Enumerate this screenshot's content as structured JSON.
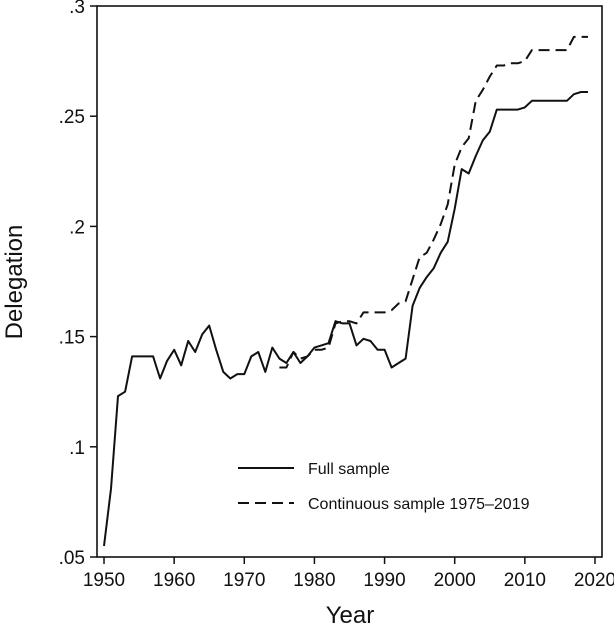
{
  "chart_data": {
    "type": "line",
    "title": "",
    "xlabel": "Year",
    "ylabel": "Delegation",
    "xlim": [
      1949,
      2021
    ],
    "ylim": [
      0.05,
      0.3
    ],
    "x_ticks": [
      1950,
      1960,
      1970,
      1980,
      1990,
      2000,
      2010,
      2020
    ],
    "x_tick_labels": [
      "1950",
      "1960",
      "1970",
      "1980",
      "1990",
      "2000",
      "2010",
      "2020"
    ],
    "y_ticks": [
      0.05,
      0.1,
      0.15,
      0.2,
      0.25,
      0.3
    ],
    "y_tick_labels": [
      ".05",
      ".1",
      ".15",
      ".2",
      ".25",
      ".3"
    ],
    "grid": false,
    "legend_position": "bottom-right",
    "series": [
      {
        "name": "Full sample",
        "style": "solid",
        "color": "#111111",
        "x": [
          1950,
          1951,
          1952,
          1953,
          1954,
          1955,
          1956,
          1957,
          1958,
          1959,
          1960,
          1961,
          1962,
          1963,
          1964,
          1965,
          1966,
          1967,
          1968,
          1969,
          1970,
          1971,
          1972,
          1973,
          1974,
          1975,
          1976,
          1977,
          1978,
          1979,
          1980,
          1981,
          1982,
          1983,
          1984,
          1985,
          1986,
          1987,
          1988,
          1989,
          1990,
          1991,
          1992,
          1993,
          1994,
          1995,
          1996,
          1997,
          1998,
          1999,
          2000,
          2001,
          2002,
          2003,
          2004,
          2005,
          2006,
          2007,
          2008,
          2009,
          2010,
          2011,
          2012,
          2013,
          2014,
          2015,
          2016,
          2017,
          2018,
          2019
        ],
        "y": [
          0.055,
          0.081,
          0.123,
          0.125,
          0.141,
          0.141,
          0.141,
          0.141,
          0.131,
          0.139,
          0.144,
          0.137,
          0.148,
          0.143,
          0.151,
          0.155,
          0.144,
          0.134,
          0.131,
          0.133,
          0.133,
          0.141,
          0.143,
          0.134,
          0.145,
          0.14,
          0.138,
          0.143,
          0.138,
          0.141,
          0.145,
          0.146,
          0.147,
          0.157,
          0.156,
          0.156,
          0.146,
          0.149,
          0.148,
          0.144,
          0.144,
          0.136,
          0.138,
          0.14,
          0.164,
          0.172,
          0.177,
          0.181,
          0.188,
          0.193,
          0.208,
          0.226,
          0.224,
          0.232,
          0.239,
          0.243,
          0.253,
          0.253,
          0.253,
          0.253,
          0.254,
          0.257,
          0.257,
          0.257,
          0.257,
          0.257,
          0.257,
          0.26,
          0.261,
          0.261
        ]
      },
      {
        "name": "Continuous sample 1975–2019",
        "style": "dashed",
        "color": "#111111",
        "x": [
          1975,
          1976,
          1977,
          1978,
          1979,
          1980,
          1981,
          1982,
          1983,
          1984,
          1985,
          1986,
          1987,
          1988,
          1989,
          1990,
          1991,
          1992,
          1993,
          1994,
          1995,
          1996,
          1997,
          1998,
          1999,
          2000,
          2001,
          2002,
          2003,
          2004,
          2005,
          2006,
          2007,
          2008,
          2009,
          2010,
          2011,
          2012,
          2013,
          2014,
          2015,
          2016,
          2017,
          2018,
          2019
        ],
        "y": [
          0.136,
          0.136,
          0.143,
          0.14,
          0.141,
          0.144,
          0.144,
          0.145,
          0.156,
          0.157,
          0.157,
          0.156,
          0.161,
          0.161,
          0.161,
          0.161,
          0.162,
          0.165,
          0.166,
          0.176,
          0.186,
          0.188,
          0.194,
          0.201,
          0.21,
          0.228,
          0.236,
          0.24,
          0.257,
          0.262,
          0.268,
          0.273,
          0.273,
          0.274,
          0.274,
          0.275,
          0.28,
          0.28,
          0.28,
          0.28,
          0.28,
          0.28,
          0.286,
          0.286,
          0.286
        ]
      }
    ]
  }
}
